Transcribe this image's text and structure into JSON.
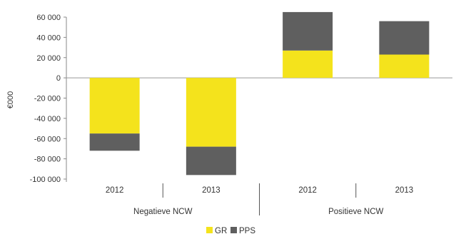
{
  "chart_data": {
    "type": "bar",
    "stacked": true,
    "ylabel": "€000",
    "ylim": [
      -100000,
      60000
    ],
    "yticks": [
      60000,
      40000,
      20000,
      0,
      -20000,
      -40000,
      -60000,
      -80000,
      -100000
    ],
    "ytick_labels": [
      "60 000",
      "40 000",
      "20 000",
      "0",
      "-20 000",
      "-40 000",
      "-60 000",
      "-80 000",
      "-100 000"
    ],
    "grid": false,
    "legend_position": "bottom",
    "groups": [
      {
        "label": "Negatieve NCW",
        "categories": [
          "2012",
          "2013"
        ]
      },
      {
        "label": "Positieve NCW",
        "categories": [
          "2012",
          "2013"
        ]
      }
    ],
    "categories": [
      "2012",
      "2013",
      "2012",
      "2013"
    ],
    "series": [
      {
        "name": "GR",
        "color": "#f4e31c",
        "values": [
          -55000,
          -68000,
          27000,
          23000
        ]
      },
      {
        "name": "PPS",
        "color": "#5f5f5f",
        "values": [
          -17000,
          -28000,
          38000,
          33000
        ]
      }
    ]
  }
}
